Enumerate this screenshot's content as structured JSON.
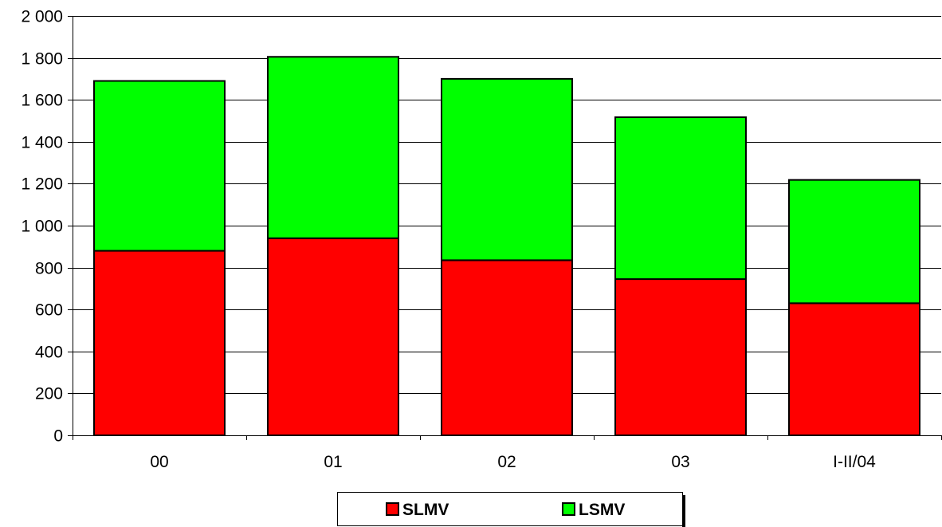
{
  "chart_data": {
    "type": "bar",
    "stacked": true,
    "categories": [
      "00",
      "01",
      "02",
      "03",
      "I-II/04"
    ],
    "series": [
      {
        "name": "SLMV",
        "values": [
          880,
          940,
          835,
          745,
          630
        ],
        "color": "#ff0000"
      },
      {
        "name": "LSMV",
        "values": [
          810,
          865,
          865,
          772,
          588
        ],
        "color": "#00ff00"
      }
    ],
    "y_ticks": [
      {
        "value": 0,
        "label": "0"
      },
      {
        "value": 200,
        "label": "200"
      },
      {
        "value": 400,
        "label": "400"
      },
      {
        "value": 600,
        "label": "600"
      },
      {
        "value": 800,
        "label": "800"
      },
      {
        "value": 1000,
        "label": "1 000"
      },
      {
        "value": 1200,
        "label": "1 200"
      },
      {
        "value": 1400,
        "label": "1 400"
      },
      {
        "value": 1600,
        "label": "1 600"
      },
      {
        "value": 1800,
        "label": "1 800"
      },
      {
        "value": 2000,
        "label": "2 000"
      }
    ],
    "ylim": [
      0,
      2000
    ],
    "grid": true,
    "legend": "bottom-center",
    "title": "",
    "xlabel": "",
    "ylabel": ""
  }
}
